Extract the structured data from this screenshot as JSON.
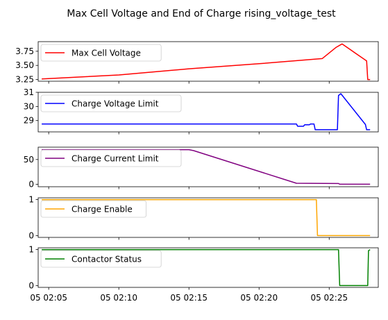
{
  "title": "Max Cell Voltage and End of Charge rising_voltage_test",
  "x_ticks": [
    "05 02:05",
    "05 02:10",
    "05 02:15",
    "05 02:20",
    "05 02:25"
  ],
  "chart_data": [
    {
      "type": "line",
      "legend": "upper left",
      "xlim": [
        "02:04:15",
        "02:28:30"
      ],
      "ylim": [
        3.22,
        3.92
      ],
      "yticks": [
        "3.25",
        "3.50",
        "3.75"
      ],
      "series": [
        {
          "name": "Max Cell Voltage",
          "color": "#ff0000",
          "points": [
            [
              "02:04:30",
              3.26
            ],
            [
              "02:10:00",
              3.33
            ],
            [
              "02:15:00",
              3.44
            ],
            [
              "02:20:00",
              3.53
            ],
            [
              "02:24:30",
              3.62
            ],
            [
              "02:25:30",
              3.82
            ],
            [
              "02:25:55",
              3.88
            ],
            [
              "02:27:40",
              3.58
            ],
            [
              "02:27:45",
              3.25
            ],
            [
              "02:27:55",
              3.25
            ]
          ]
        }
      ]
    },
    {
      "type": "line",
      "legend": "upper left",
      "xlim": [
        "02:04:15",
        "02:28:30"
      ],
      "ylim": [
        28.2,
        31.0
      ],
      "yticks": [
        "29",
        "30",
        "31"
      ],
      "series": [
        {
          "name": "Charge Voltage Limit",
          "color": "#0000ff",
          "points": [
            [
              "02:04:30",
              28.76
            ],
            [
              "02:22:40",
              28.76
            ],
            [
              "02:22:45",
              28.6
            ],
            [
              "02:23:10",
              28.6
            ],
            [
              "02:23:15",
              28.7
            ],
            [
              "02:23:35",
              28.7
            ],
            [
              "02:23:40",
              28.76
            ],
            [
              "02:23:55",
              28.76
            ],
            [
              "02:24:00",
              28.35
            ],
            [
              "02:25:35",
              28.35
            ],
            [
              "02:25:40",
              30.78
            ],
            [
              "02:25:50",
              30.9
            ],
            [
              "02:27:35",
              28.72
            ],
            [
              "02:27:40",
              28.35
            ],
            [
              "02:27:55",
              28.35
            ]
          ]
        }
      ]
    },
    {
      "type": "line",
      "legend": "upper left",
      "xlim": [
        "02:04:15",
        "02:28:30"
      ],
      "ylim": [
        -5,
        75
      ],
      "yticks": [
        "0",
        "50"
      ],
      "series": [
        {
          "name": "Charge Current Limit",
          "color": "#800080",
          "points": [
            [
              "02:04:30",
              70
            ],
            [
              "02:15:00",
              70
            ],
            [
              "02:15:20",
              68
            ],
            [
              "02:22:40",
              2
            ],
            [
              "02:25:40",
              1.5
            ],
            [
              "02:25:45",
              0
            ],
            [
              "02:27:55",
              0
            ]
          ]
        }
      ]
    },
    {
      "type": "line",
      "legend": "upper left",
      "xlim": [
        "02:04:15",
        "02:28:30"
      ],
      "ylim": [
        -0.05,
        1.05
      ],
      "yticks": [
        "0",
        "1"
      ],
      "series": [
        {
          "name": "Charge Enable",
          "color": "#ffa500",
          "points": [
            [
              "02:04:30",
              1
            ],
            [
              "02:24:05",
              1
            ],
            [
              "02:24:10",
              0
            ],
            [
              "02:27:55",
              0
            ]
          ]
        }
      ]
    },
    {
      "type": "line",
      "legend": "upper left",
      "xlim": [
        "02:04:15",
        "02:28:30"
      ],
      "ylim": [
        -0.05,
        1.05
      ],
      "yticks": [
        "0",
        "1"
      ],
      "series": [
        {
          "name": "Contactor Status",
          "color": "#008000",
          "points": [
            [
              "02:04:30",
              1
            ],
            [
              "02:25:40",
              1
            ],
            [
              "02:25:45",
              0
            ],
            [
              "02:27:45",
              0
            ],
            [
              "02:27:48",
              0.97
            ],
            [
              "02:27:55",
              1
            ]
          ]
        }
      ]
    }
  ]
}
